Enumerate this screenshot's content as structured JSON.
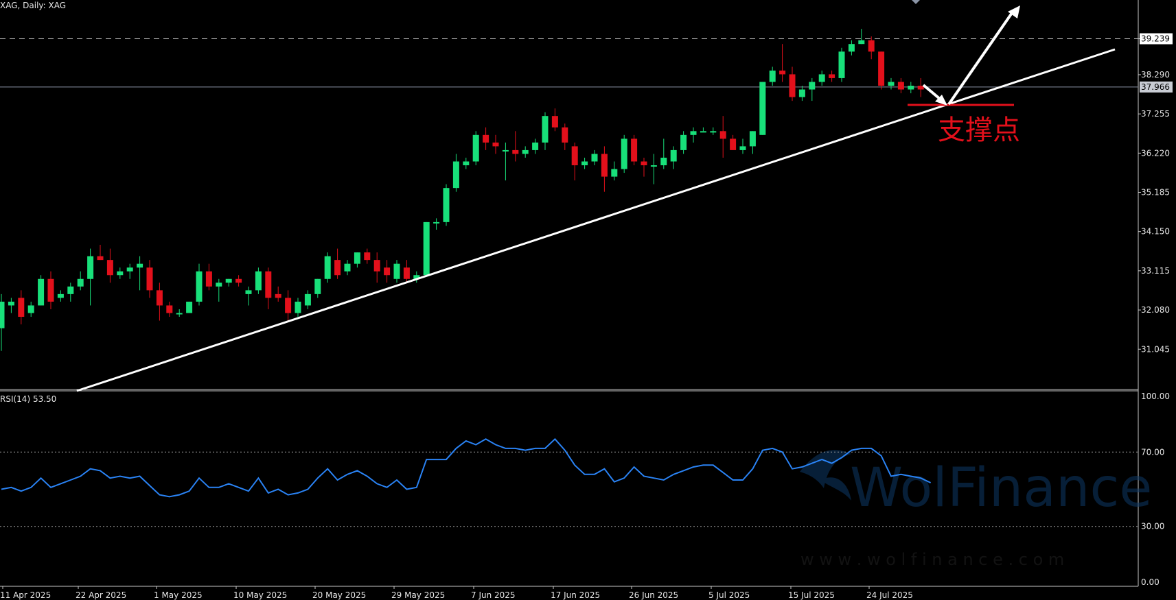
{
  "header": {
    "title": "XAG, Daily:  XAG"
  },
  "annotation": {
    "support_label": "支撑点"
  },
  "watermark": {
    "brand": "WolFinance",
    "url": "w w w . w o l f i n a n c e . c o m"
  },
  "colors": {
    "background": "#000000",
    "bull": "#18e07a",
    "bear": "#e3101b",
    "rsi_line": "#2a83f5",
    "trendline": "#ffffff",
    "support": "#e3101b"
  },
  "chart_data": [
    {
      "type": "candlestick",
      "title": "XAG, Daily:  XAG",
      "ylim": [
        30.0,
        39.9
      ],
      "y_ticks": [
        "39.239",
        "38.290",
        "37.255",
        "36.220",
        "35.185",
        "34.150",
        "33.115",
        "32.080",
        "31.045"
      ],
      "price_labels": {
        "high": "39.239",
        "current": "37.966"
      },
      "x_tick_labels": [
        "11 Apr 2025",
        "22 Apr 2025",
        "1 May 2025",
        "10 May 2025",
        "20 May 2025",
        "29 May 2025",
        "7 Jun 2025",
        "17 Jun 2025",
        "26 Jun 2025",
        "5 Jul 2025",
        "15 Jul 2025",
        "24 Jul 2025"
      ],
      "candles": [
        {
          "o": 31.6,
          "h": 32.5,
          "l": 31.0,
          "c": 32.3
        },
        {
          "o": 32.2,
          "h": 32.4,
          "l": 32.0,
          "c": 32.3
        },
        {
          "o": 32.4,
          "h": 32.6,
          "l": 31.7,
          "c": 31.9
        },
        {
          "o": 32.0,
          "h": 32.3,
          "l": 31.9,
          "c": 32.2
        },
        {
          "o": 32.2,
          "h": 33.0,
          "l": 32.2,
          "c": 32.9
        },
        {
          "o": 32.9,
          "h": 33.1,
          "l": 32.1,
          "c": 32.3
        },
        {
          "o": 32.4,
          "h": 32.6,
          "l": 32.3,
          "c": 32.5
        },
        {
          "o": 32.5,
          "h": 32.8,
          "l": 32.3,
          "c": 32.7
        },
        {
          "o": 32.7,
          "h": 33.1,
          "l": 32.6,
          "c": 32.9
        },
        {
          "o": 32.9,
          "h": 33.7,
          "l": 32.2,
          "c": 33.5
        },
        {
          "o": 33.5,
          "h": 33.8,
          "l": 33.4,
          "c": 33.4
        },
        {
          "o": 33.4,
          "h": 33.7,
          "l": 32.8,
          "c": 33.0
        },
        {
          "o": 33.0,
          "h": 33.2,
          "l": 32.9,
          "c": 33.1
        },
        {
          "o": 33.1,
          "h": 33.3,
          "l": 32.9,
          "c": 33.2
        },
        {
          "o": 33.2,
          "h": 33.5,
          "l": 32.6,
          "c": 33.3
        },
        {
          "o": 33.2,
          "h": 33.4,
          "l": 32.4,
          "c": 32.6
        },
        {
          "o": 32.6,
          "h": 32.8,
          "l": 31.8,
          "c": 32.2
        },
        {
          "o": 32.2,
          "h": 32.3,
          "l": 31.9,
          "c": 32.0
        },
        {
          "o": 32.0,
          "h": 32.1,
          "l": 31.9,
          "c": 32.0
        },
        {
          "o": 32.0,
          "h": 32.3,
          "l": 32.0,
          "c": 32.3
        },
        {
          "o": 32.3,
          "h": 33.3,
          "l": 32.2,
          "c": 33.1
        },
        {
          "o": 33.1,
          "h": 33.3,
          "l": 32.6,
          "c": 32.7
        },
        {
          "o": 32.7,
          "h": 32.9,
          "l": 32.3,
          "c": 32.8
        },
        {
          "o": 32.8,
          "h": 32.9,
          "l": 32.7,
          "c": 32.9
        },
        {
          "o": 32.9,
          "h": 33.0,
          "l": 32.7,
          "c": 32.8
        },
        {
          "o": 32.5,
          "h": 32.7,
          "l": 32.2,
          "c": 32.6
        },
        {
          "o": 32.6,
          "h": 33.2,
          "l": 32.5,
          "c": 33.1
        },
        {
          "o": 33.1,
          "h": 33.2,
          "l": 32.1,
          "c": 32.4
        },
        {
          "o": 32.5,
          "h": 32.7,
          "l": 32.3,
          "c": 32.4
        },
        {
          "o": 32.4,
          "h": 32.6,
          "l": 31.8,
          "c": 32.0
        },
        {
          "o": 32.0,
          "h": 32.4,
          "l": 31.9,
          "c": 32.3
        },
        {
          "o": 32.2,
          "h": 32.6,
          "l": 32.1,
          "c": 32.5
        },
        {
          "o": 32.5,
          "h": 32.9,
          "l": 32.4,
          "c": 32.9
        },
        {
          "o": 32.9,
          "h": 33.6,
          "l": 32.8,
          "c": 33.5
        },
        {
          "o": 33.4,
          "h": 33.7,
          "l": 32.9,
          "c": 33.0
        },
        {
          "o": 33.1,
          "h": 33.4,
          "l": 33.0,
          "c": 33.3
        },
        {
          "o": 33.3,
          "h": 33.6,
          "l": 33.2,
          "c": 33.6
        },
        {
          "o": 33.6,
          "h": 33.7,
          "l": 33.3,
          "c": 33.4
        },
        {
          "o": 33.4,
          "h": 33.6,
          "l": 32.8,
          "c": 33.1
        },
        {
          "o": 33.2,
          "h": 33.4,
          "l": 32.8,
          "c": 33.0
        },
        {
          "o": 32.9,
          "h": 33.4,
          "l": 32.8,
          "c": 33.3
        },
        {
          "o": 33.2,
          "h": 33.4,
          "l": 32.8,
          "c": 32.9
        },
        {
          "o": 32.9,
          "h": 33.1,
          "l": 32.8,
          "c": 33.0
        },
        {
          "o": 33.0,
          "h": 34.4,
          "l": 33.0,
          "c": 34.4
        },
        {
          "o": 34.4,
          "h": 34.5,
          "l": 34.2,
          "c": 34.4
        },
        {
          "o": 34.4,
          "h": 35.4,
          "l": 34.3,
          "c": 35.3
        },
        {
          "o": 35.3,
          "h": 36.2,
          "l": 35.2,
          "c": 36.0
        },
        {
          "o": 35.9,
          "h": 36.1,
          "l": 35.8,
          "c": 36.0
        },
        {
          "o": 36.0,
          "h": 36.8,
          "l": 35.9,
          "c": 36.7
        },
        {
          "o": 36.7,
          "h": 36.9,
          "l": 36.3,
          "c": 36.5
        },
        {
          "o": 36.5,
          "h": 36.7,
          "l": 36.2,
          "c": 36.4
        },
        {
          "o": 36.3,
          "h": 36.5,
          "l": 35.5,
          "c": 36.3
        },
        {
          "o": 36.3,
          "h": 36.8,
          "l": 36.0,
          "c": 36.2
        },
        {
          "o": 36.2,
          "h": 36.4,
          "l": 36.1,
          "c": 36.3
        },
        {
          "o": 36.3,
          "h": 36.6,
          "l": 36.2,
          "c": 36.5
        },
        {
          "o": 36.5,
          "h": 37.3,
          "l": 36.3,
          "c": 37.2
        },
        {
          "o": 37.2,
          "h": 37.4,
          "l": 36.8,
          "c": 36.9
        },
        {
          "o": 36.9,
          "h": 37.0,
          "l": 36.3,
          "c": 36.5
        },
        {
          "o": 36.4,
          "h": 36.5,
          "l": 35.5,
          "c": 35.9
        },
        {
          "o": 35.9,
          "h": 36.1,
          "l": 35.8,
          "c": 36.0
        },
        {
          "o": 36.0,
          "h": 36.3,
          "l": 35.9,
          "c": 36.2
        },
        {
          "o": 36.2,
          "h": 36.4,
          "l": 35.2,
          "c": 35.6
        },
        {
          "o": 35.6,
          "h": 36.0,
          "l": 35.5,
          "c": 35.8
        },
        {
          "o": 35.8,
          "h": 36.7,
          "l": 35.7,
          "c": 36.6
        },
        {
          "o": 36.6,
          "h": 36.7,
          "l": 35.9,
          "c": 36.0
        },
        {
          "o": 36.0,
          "h": 36.1,
          "l": 35.6,
          "c": 35.9
        },
        {
          "o": 35.9,
          "h": 36.2,
          "l": 35.4,
          "c": 35.9
        },
        {
          "o": 35.9,
          "h": 36.6,
          "l": 35.8,
          "c": 36.1
        },
        {
          "o": 36.0,
          "h": 36.4,
          "l": 35.8,
          "c": 36.3
        },
        {
          "o": 36.3,
          "h": 36.8,
          "l": 36.2,
          "c": 36.7
        },
        {
          "o": 36.7,
          "h": 36.9,
          "l": 36.5,
          "c": 36.8
        },
        {
          "o": 36.8,
          "h": 36.9,
          "l": 36.8,
          "c": 36.8
        },
        {
          "o": 36.8,
          "h": 36.9,
          "l": 36.7,
          "c": 36.8
        },
        {
          "o": 36.8,
          "h": 37.2,
          "l": 36.1,
          "c": 36.6
        },
        {
          "o": 36.6,
          "h": 36.7,
          "l": 36.3,
          "c": 36.3
        },
        {
          "o": 36.3,
          "h": 36.6,
          "l": 36.2,
          "c": 36.4
        },
        {
          "o": 36.4,
          "h": 36.8,
          "l": 36.2,
          "c": 36.8
        },
        {
          "o": 36.7,
          "h": 38.1,
          "l": 36.7,
          "c": 38.1
        },
        {
          "o": 38.1,
          "h": 38.5,
          "l": 38.0,
          "c": 38.4
        },
        {
          "o": 38.4,
          "h": 39.1,
          "l": 38.1,
          "c": 38.3
        },
        {
          "o": 38.3,
          "h": 38.5,
          "l": 37.6,
          "c": 37.7
        },
        {
          "o": 37.7,
          "h": 38.0,
          "l": 37.6,
          "c": 37.9
        },
        {
          "o": 37.9,
          "h": 38.2,
          "l": 37.6,
          "c": 38.1
        },
        {
          "o": 38.1,
          "h": 38.4,
          "l": 38.0,
          "c": 38.3
        },
        {
          "o": 38.3,
          "h": 38.4,
          "l": 38.1,
          "c": 38.2
        },
        {
          "o": 38.2,
          "h": 39.0,
          "l": 38.1,
          "c": 38.9
        },
        {
          "o": 38.9,
          "h": 39.2,
          "l": 38.8,
          "c": 39.1
        },
        {
          "o": 39.1,
          "h": 39.5,
          "l": 39.1,
          "c": 39.2
        },
        {
          "o": 39.2,
          "h": 39.3,
          "l": 38.7,
          "c": 38.9
        },
        {
          "o": 38.9,
          "h": 38.9,
          "l": 37.9,
          "c": 38.0
        },
        {
          "o": 38.0,
          "h": 38.2,
          "l": 37.9,
          "c": 38.1
        },
        {
          "o": 38.1,
          "h": 38.2,
          "l": 37.8,
          "c": 37.9
        },
        {
          "o": 37.9,
          "h": 38.1,
          "l": 37.8,
          "c": 38.0
        },
        {
          "o": 38.0,
          "h": 38.2,
          "l": 37.7,
          "c": 37.9
        }
      ]
    },
    {
      "type": "line",
      "title": "RSI(14) 53.50",
      "ylim": [
        0,
        100
      ],
      "y_ticks": [
        "100.00",
        "70.00",
        "30.00",
        "0.00"
      ],
      "levels": [
        70,
        30
      ],
      "values": [
        50,
        51,
        49,
        51,
        56,
        51,
        53,
        55,
        57,
        61,
        60,
        56,
        57,
        56,
        57,
        52,
        47,
        46,
        47,
        49,
        56,
        51,
        51,
        53,
        51,
        49,
        56,
        48,
        50,
        47,
        48,
        50,
        56,
        61,
        55,
        58,
        60,
        57,
        53,
        51,
        55,
        50,
        51,
        66,
        66,
        66,
        72,
        76,
        74,
        77,
        74,
        72,
        72,
        71,
        72,
        72,
        77,
        71,
        63,
        58,
        58,
        61,
        54,
        56,
        62,
        57,
        56,
        55,
        58,
        60,
        62,
        63,
        63,
        59,
        55,
        55,
        61,
        71,
        72,
        70,
        61,
        62,
        64,
        66,
        64,
        67,
        71,
        72,
        72,
        68,
        57,
        58,
        57,
        56,
        53.5
      ]
    }
  ]
}
